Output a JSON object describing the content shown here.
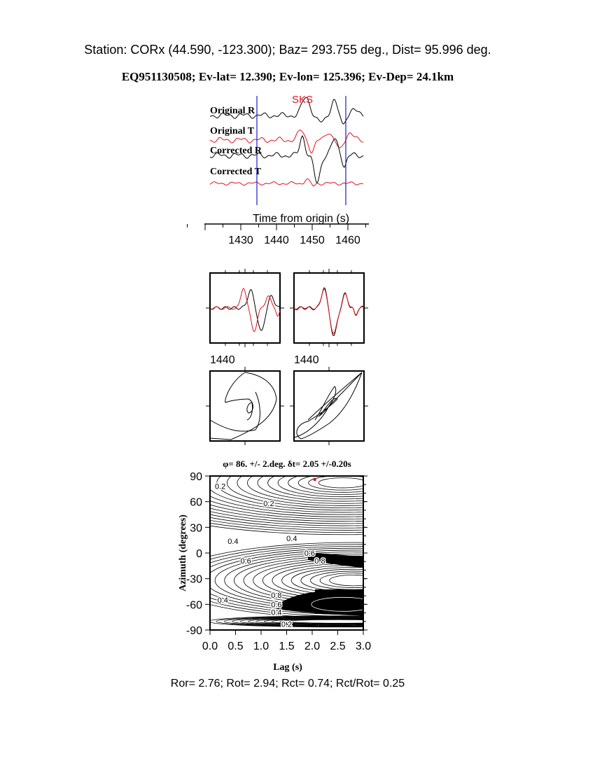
{
  "header": {
    "station_line": "Station: CORx (44.590, -123.300); Baz=  293.755 deg., Dist=   95.996 deg.",
    "event_line": "EQ951130508; Ev-lat=  12.390; Ev-lon= 125.396; Ev-Dep= 24.1km"
  },
  "colors": {
    "black": "#000000",
    "red": "#e0141e",
    "blue": "#1a1acc"
  },
  "chart_data": [
    {
      "type": "line",
      "phase_label": "SKS",
      "trace_labels": [
        "Original R",
        "Original T",
        "Corrected R",
        "Corrected T"
      ],
      "xlabel": "Time from origin (s)",
      "xticks": [
        1430,
        1440,
        1450,
        1460
      ],
      "window_markers": [
        1434.5,
        1459.5
      ]
    },
    {
      "type": "line",
      "panels": [
        "waveform-overlay-original",
        "waveform-overlay-corrected"
      ],
      "tick_labels": [
        "1440",
        "1440"
      ]
    },
    {
      "type": "line",
      "panels": [
        "particle-motion-original",
        "particle-motion-corrected"
      ]
    },
    {
      "type": "heatmap",
      "title": "φ= 86. +/- 2.deg. δt= 2.05 +/-0.20s",
      "xlabel": "Lag (s)",
      "ylabel": "Azimuth (degrees)",
      "xlim": [
        0.0,
        3.0
      ],
      "ylim": [
        -90,
        90
      ],
      "xticks": [
        "0.0",
        "0.5",
        "1.0",
        "1.5",
        "2.0",
        "2.5",
        "3.0"
      ],
      "yticks": [
        "90",
        "60",
        "30",
        "0",
        "-30",
        "-60",
        "-90"
      ],
      "best_fit": {
        "lag": 2.05,
        "azimuth": 86
      },
      "contour_labels": [
        {
          "text": "0.2",
          "lag": 0.2,
          "azimuth": 78
        },
        {
          "text": "0.2",
          "lag": 1.15,
          "azimuth": 58
        },
        {
          "text": "0.4",
          "lag": 0.45,
          "azimuth": 14
        },
        {
          "text": "0.4",
          "lag": 1.6,
          "azimuth": 17
        },
        {
          "text": "0.6",
          "lag": 1.95,
          "azimuth": 0
        },
        {
          "text": "0.8",
          "lag": 2.15,
          "azimuth": -9
        },
        {
          "text": "0.6",
          "lag": 0.7,
          "azimuth": -9
        },
        {
          "text": "0.4",
          "lag": 0.25,
          "azimuth": -55
        },
        {
          "text": "0.8",
          "lag": 1.3,
          "azimuth": -49
        },
        {
          "text": "0.6",
          "lag": 1.3,
          "azimuth": -60
        },
        {
          "text": "0.4",
          "lag": 1.3,
          "azimuth": -69
        },
        {
          "text": "0.2",
          "lag": 1.5,
          "azimuth": -83
        }
      ]
    }
  ],
  "footer": {
    "ratios": "Ror= 2.76; Rot= 2.94; Rct= 0.74; Rct/Rot= 0.25"
  }
}
